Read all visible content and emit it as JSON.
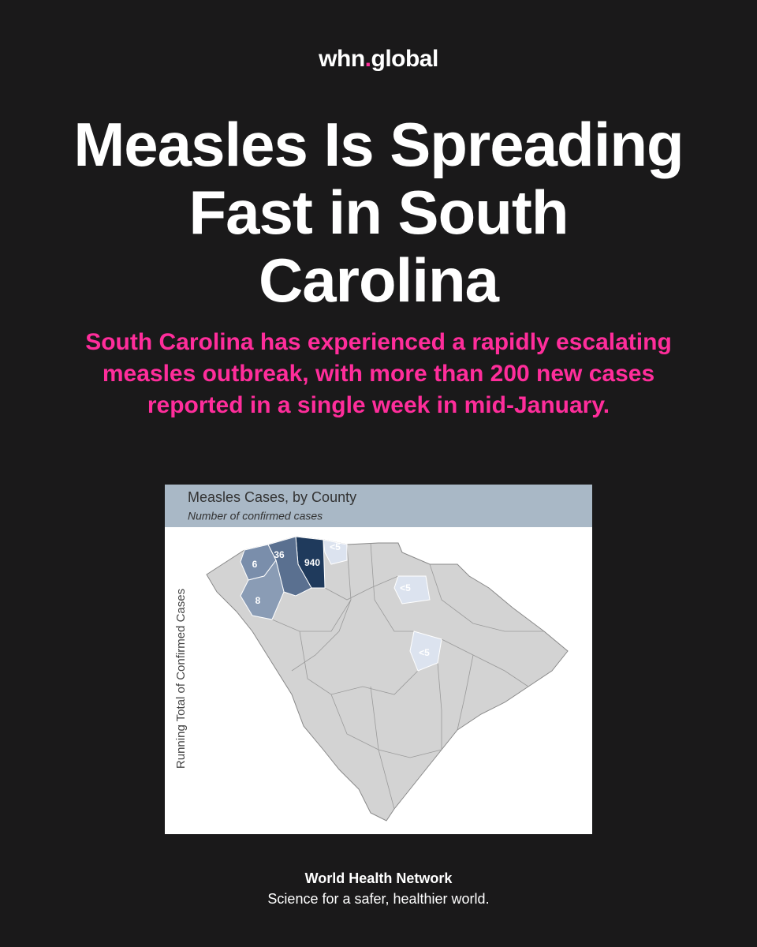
{
  "brand": {
    "name": "whn",
    "dot": ".",
    "domain": "global"
  },
  "title": "Measles Is Spreading Fast in South Carolina",
  "subtitle": "South Carolina has experienced a rapidly escalating measles outbreak, with more than 200 new cases reported in a single week in mid-January.",
  "map": {
    "title": "Measles Cases, by County",
    "subtitle": "Number of confirmed cases",
    "axis_label": "Running Total of Confirmed Cases",
    "county_labels": [
      "940",
      "36",
      "6",
      "8",
      "<5",
      "<5",
      "<5"
    ]
  },
  "footer": {
    "organization": "World Health Network",
    "tagline": "Science for a safer, healthier world."
  }
}
